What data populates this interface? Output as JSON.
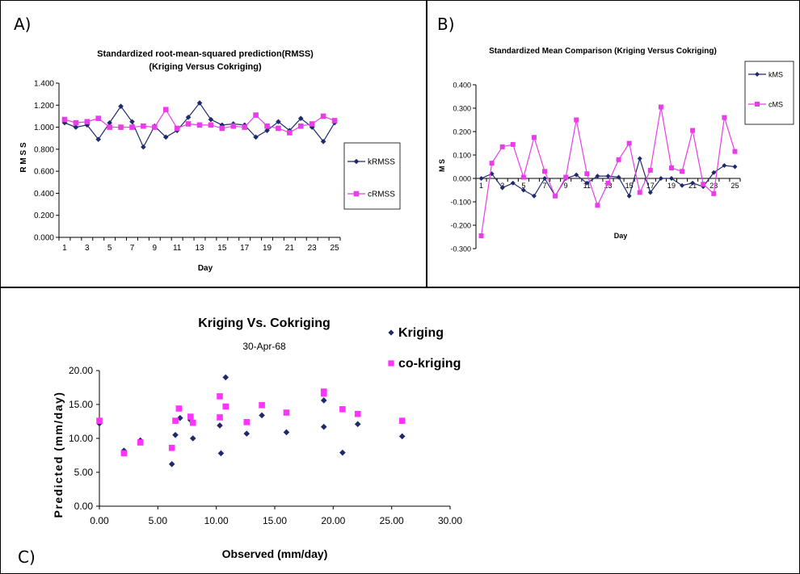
{
  "panels": {
    "a": {
      "letter": "A)"
    },
    "b": {
      "letter": "B)"
    },
    "c": {
      "letter": "C)"
    }
  },
  "chart_data": [
    {
      "id": "A",
      "type": "line",
      "title": "Standardized root-mean-squared prediction(RMSS)",
      "subtitle": "(Kriging Versus Cokriging)",
      "xlabel": "Day",
      "ylabel": "R M S S",
      "ylim": [
        0,
        1.4
      ],
      "yticks": [
        "0.000",
        "0.200",
        "0.400",
        "0.600",
        "0.800",
        "1.000",
        "1.200",
        "1.400"
      ],
      "xticks": [
        "1",
        "3",
        "5",
        "7",
        "9",
        "11",
        "13",
        "15",
        "17",
        "19",
        "21",
        "23",
        "25"
      ],
      "grid": false,
      "legend_position": "right",
      "x": [
        1,
        2,
        3,
        4,
        5,
        6,
        7,
        8,
        9,
        10,
        11,
        12,
        13,
        14,
        15,
        16,
        17,
        18,
        19,
        20,
        21,
        22,
        23,
        24,
        25
      ],
      "series": [
        {
          "name": "kRMSS",
          "color": "#1f2a6b",
          "marker": "diamond",
          "values": [
            1.04,
            1.0,
            1.02,
            0.89,
            1.04,
            1.19,
            1.05,
            0.82,
            1.01,
            0.91,
            0.97,
            1.09,
            1.22,
            1.07,
            1.02,
            1.03,
            1.02,
            0.91,
            0.97,
            1.05,
            0.97,
            1.08,
            1.0,
            0.87,
            1.04
          ]
        },
        {
          "name": "cRMSS",
          "color": "#e83de8",
          "marker": "square",
          "values": [
            1.07,
            1.04,
            1.05,
            1.08,
            1.0,
            1.0,
            1.0,
            1.01,
            1.0,
            1.16,
            0.99,
            1.03,
            1.02,
            1.02,
            0.99,
            1.01,
            1.0,
            1.11,
            1.01,
            0.99,
            0.95,
            1.01,
            1.03,
            1.1,
            1.06
          ]
        }
      ]
    },
    {
      "id": "B",
      "type": "line",
      "title": "Standardized Mean Comparison (Kriging Versus Cokriging)",
      "xlabel": "Day",
      "ylabel": "M S",
      "ylim": [
        -0.3,
        0.4
      ],
      "yticks": [
        "-0.300",
        "-0.200",
        "-0.100",
        "0.000",
        "0.100",
        "0.200",
        "0.300",
        "0.400"
      ],
      "xticks": [
        "1",
        "3",
        "5",
        "7",
        "9",
        "11",
        "13",
        "15",
        "17",
        "19",
        "21",
        "23",
        "25"
      ],
      "grid": false,
      "legend_position": "top-right",
      "x": [
        1,
        2,
        3,
        4,
        5,
        6,
        7,
        8,
        9,
        10,
        11,
        12,
        13,
        14,
        15,
        16,
        17,
        18,
        19,
        20,
        21,
        22,
        23,
        24,
        25
      ],
      "series": [
        {
          "name": "kMS",
          "color": "#1f2a6b",
          "marker": "diamond",
          "values": [
            0.0,
            0.02,
            -0.04,
            -0.02,
            -0.05,
            -0.075,
            0.0,
            -0.075,
            0.0,
            0.015,
            -0.02,
            0.01,
            0.01,
            0.005,
            -0.075,
            0.085,
            -0.06,
            0.0,
            0.0,
            -0.03,
            -0.02,
            -0.035,
            0.025,
            0.055,
            0.05
          ]
        },
        {
          "name": "cMS",
          "color": "#e83de8",
          "marker": "square",
          "values": [
            -0.245,
            0.065,
            0.135,
            0.145,
            0.005,
            0.175,
            0.03,
            -0.075,
            0.005,
            0.25,
            0.02,
            -0.115,
            -0.02,
            0.08,
            0.15,
            -0.06,
            0.035,
            0.305,
            0.045,
            0.03,
            0.205,
            -0.025,
            -0.065,
            0.26,
            0.115
          ]
        }
      ]
    },
    {
      "id": "C",
      "type": "scatter",
      "title": "Kriging Vs. Cokriging",
      "subtitle": "30-Apr-68",
      "xlabel": "Observed (mm/day)",
      "ylabel": "Predicted (mm/day)",
      "xlim": [
        0,
        30
      ],
      "ylim": [
        0,
        20
      ],
      "xticks": [
        "0.00",
        "5.00",
        "10.00",
        "15.00",
        "20.00",
        "25.00",
        "30.00"
      ],
      "yticks": [
        "0.00",
        "5.00",
        "10.00",
        "15.00",
        "20.00"
      ],
      "grid": false,
      "legend_position": "top-right",
      "series": [
        {
          "name": "Kriging",
          "color": "#1f2a6b",
          "marker": "diamond",
          "points": [
            [
              0.0,
              12.2
            ],
            [
              2.1,
              8.2
            ],
            [
              3.5,
              9.7
            ],
            [
              6.2,
              6.2
            ],
            [
              6.5,
              10.5
            ],
            [
              6.9,
              13.0
            ],
            [
              7.8,
              12.7
            ],
            [
              8.0,
              10.0
            ],
            [
              10.3,
              11.9
            ],
            [
              10.4,
              7.8
            ],
            [
              10.8,
              19.0
            ],
            [
              12.6,
              10.7
            ],
            [
              13.9,
              13.4
            ],
            [
              16.0,
              10.9
            ],
            [
              19.2,
              15.6
            ],
            [
              19.2,
              11.7
            ],
            [
              20.8,
              7.9
            ],
            [
              22.1,
              12.1
            ],
            [
              25.9,
              10.3
            ]
          ]
        },
        {
          "name": "co-kriging",
          "color": "#ff33ff",
          "marker": "square",
          "points": [
            [
              0.0,
              12.6
            ],
            [
              2.1,
              7.8
            ],
            [
              3.5,
              9.4
            ],
            [
              6.2,
              8.6
            ],
            [
              6.5,
              12.6
            ],
            [
              6.8,
              14.4
            ],
            [
              7.8,
              13.2
            ],
            [
              8.0,
              12.3
            ],
            [
              10.3,
              16.2
            ],
            [
              10.3,
              13.1
            ],
            [
              10.8,
              14.7
            ],
            [
              12.6,
              12.4
            ],
            [
              13.9,
              14.9
            ],
            [
              16.0,
              13.8
            ],
            [
              19.2,
              16.6
            ],
            [
              19.2,
              16.9
            ],
            [
              20.8,
              14.3
            ],
            [
              22.1,
              13.6
            ],
            [
              25.9,
              12.6
            ]
          ]
        }
      ]
    }
  ]
}
